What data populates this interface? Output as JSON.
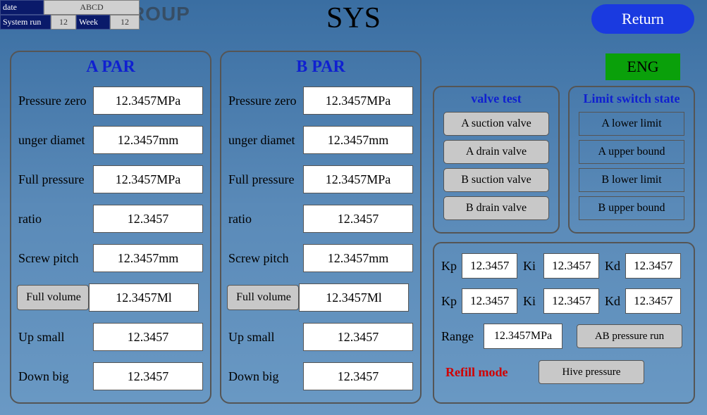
{
  "watermark": "RIGCHINA GROUP",
  "top": {
    "date_label": "date",
    "date_value": "ABCD",
    "system_run_label": "System run",
    "system_run_value": "12",
    "week_label": "Week",
    "week_value": "12"
  },
  "title": "SYS",
  "return_btn": "Return",
  "eng_btn": "ENG",
  "panels": {
    "a": {
      "title": "A PAR",
      "rows": [
        {
          "label": "Pressure zero",
          "value": "12.3457MPa",
          "boxed": false
        },
        {
          "label": "unger diamet",
          "value": "12.3457mm",
          "boxed": false
        },
        {
          "label": "Full pressure",
          "value": "12.3457MPa",
          "boxed": false
        },
        {
          "label": "ratio",
          "value": "12.3457",
          "boxed": false
        },
        {
          "label": "Screw pitch",
          "value": "12.3457mm",
          "boxed": false
        },
        {
          "label": "Full volume",
          "value": "12.3457Ml",
          "boxed": true
        },
        {
          "label": "Up small",
          "value": "12.3457",
          "boxed": false
        },
        {
          "label": "Down big",
          "value": "12.3457",
          "boxed": false
        }
      ]
    },
    "b": {
      "title": "B PAR",
      "rows": [
        {
          "label": "Pressure zero",
          "value": "12.3457MPa",
          "boxed": false
        },
        {
          "label": "unger diamet",
          "value": "12.3457mm",
          "boxed": false
        },
        {
          "label": "Full pressure",
          "value": "12.3457MPa",
          "boxed": false
        },
        {
          "label": "ratio",
          "value": "12.3457",
          "boxed": false
        },
        {
          "label": "Screw pitch",
          "value": "12.3457mm",
          "boxed": false
        },
        {
          "label": "Full volume",
          "value": "12.3457Ml",
          "boxed": true
        },
        {
          "label": "Up small",
          "value": "12.3457",
          "boxed": false
        },
        {
          "label": "Down big",
          "value": "12.3457",
          "boxed": false
        }
      ]
    }
  },
  "valve": {
    "title": "valve test",
    "buttons": [
      "A suction valve",
      "A drain valve",
      "B suction valve",
      "B drain valve"
    ]
  },
  "limit": {
    "title": "Limit switch state",
    "items": [
      "A lower limit",
      "A upper bound",
      "B lower limit",
      "B upper bound"
    ]
  },
  "pid": {
    "row1": {
      "kp": "12.3457",
      "ki": "12.3457",
      "kd": "12.3457"
    },
    "row2": {
      "kp": "12.3457",
      "ki": "12.3457",
      "kd": "12.3457"
    },
    "labels": {
      "kp": "Kp",
      "ki": "Ki",
      "kd": "Kd"
    },
    "range_label": "Range",
    "range_value": "12.3457MPa",
    "mode_btn": "AB pressure run",
    "refill_label": "Refill mode",
    "refill_btn": "Hive pressure"
  },
  "colors": {
    "bg_top": "#3a6ea2",
    "bg_bottom": "#6a99c4",
    "navy": "#0a1a6a",
    "blue_title": "#1020d0",
    "return_blue": "#1a3ae0",
    "eng_green": "#0aa00a",
    "gray_btn": "#c8c8c8",
    "border": "#555555",
    "red": "#d00000"
  }
}
